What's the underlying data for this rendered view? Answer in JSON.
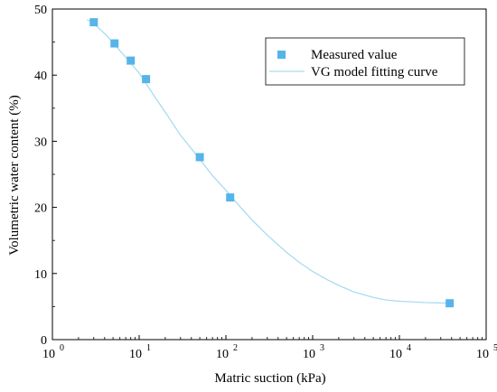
{
  "chart_data": {
    "type": "scatter",
    "title": "",
    "xlabel": "Matric suction (kPa)",
    "ylabel": "Volumetric water content (%)",
    "x_scale": "log",
    "xlim": [
      1,
      100000
    ],
    "ylim": [
      0,
      50
    ],
    "x_ticks": [
      {
        "value": 1,
        "base": "10",
        "exp": "0"
      },
      {
        "value": 10,
        "base": "10",
        "exp": "1"
      },
      {
        "value": 100,
        "base": "10",
        "exp": "2"
      },
      {
        "value": 1000,
        "base": "10",
        "exp": "3"
      },
      {
        "value": 10000,
        "base": "10",
        "exp": "4"
      },
      {
        "value": 100000,
        "base": "10",
        "exp": "5"
      }
    ],
    "y_ticks": [
      "0",
      "10",
      "20",
      "30",
      "40",
      "50"
    ],
    "grid": false,
    "legend_position": "top-right",
    "series": [
      {
        "name": "Measured value",
        "kind": "points",
        "color": "#56b4e9",
        "x": [
          3,
          5.2,
          8,
          12,
          50,
          112,
          38000
        ],
        "y": [
          48,
          44.8,
          42.2,
          39.4,
          27.6,
          21.5,
          5.5
        ]
      },
      {
        "name": "VG model fitting curve",
        "kind": "line",
        "color": "#a8dcef",
        "x": [
          2.5,
          3,
          4,
          5,
          7,
          10,
          15,
          20,
          30,
          50,
          70,
          100,
          150,
          200,
          300,
          500,
          700,
          1000,
          1500,
          2000,
          3000,
          5000,
          7000,
          10000,
          20000,
          38000
        ],
        "y": [
          48.4,
          47.8,
          46.3,
          44.9,
          42.7,
          40.3,
          36.8,
          34.4,
          30.9,
          27.3,
          24.8,
          22.6,
          19.9,
          18.1,
          15.8,
          13.2,
          11.7,
          10.3,
          9.0,
          8.2,
          7.2,
          6.4,
          6.0,
          5.8,
          5.6,
          5.5
        ]
      }
    ]
  }
}
